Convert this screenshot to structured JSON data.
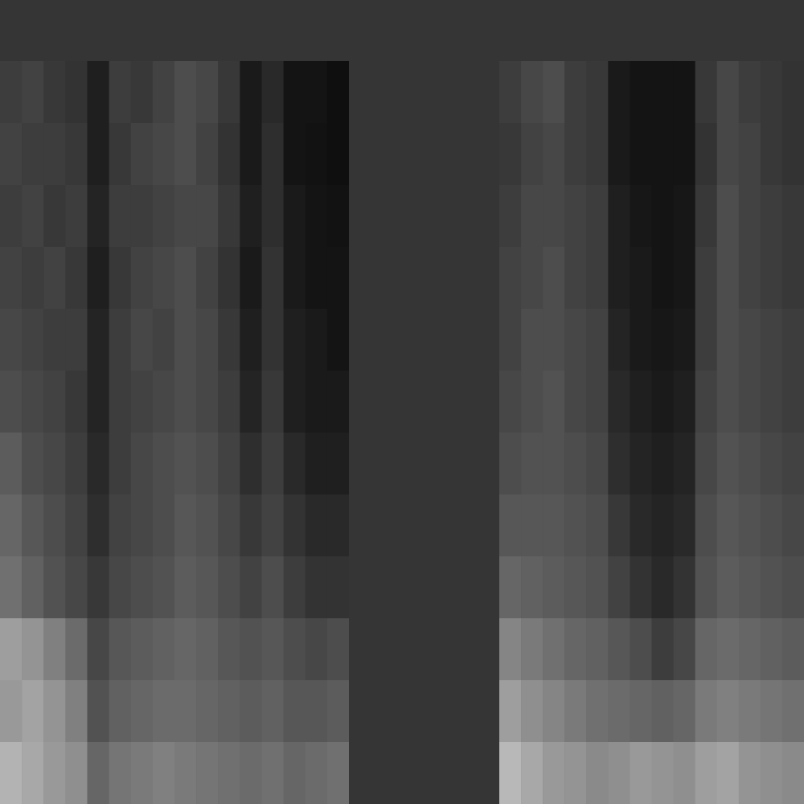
{
  "chart_data": [
    {
      "type": "heatmap",
      "color": "gray",
      "tick_labels": false,
      "zlim": [
        0,
        100
      ],
      "cells": [
        [
          24,
          26,
          22,
          20,
          12,
          24,
          22,
          26,
          30,
          28,
          22,
          10,
          16,
          8,
          8,
          6
        ],
        [
          26,
          24,
          24,
          22,
          12,
          22,
          26,
          28,
          30,
          26,
          20,
          10,
          18,
          8,
          7,
          6
        ],
        [
          24,
          26,
          22,
          24,
          14,
          24,
          24,
          26,
          28,
          28,
          22,
          12,
          18,
          10,
          8,
          7
        ],
        [
          26,
          24,
          26,
          22,
          12,
          22,
          26,
          28,
          30,
          26,
          20,
          10,
          20,
          10,
          8,
          8
        ],
        [
          28,
          26,
          24,
          24,
          14,
          24,
          28,
          26,
          30,
          28,
          22,
          12,
          20,
          12,
          10,
          8
        ],
        [
          30,
          28,
          26,
          22,
          14,
          24,
          26,
          28,
          30,
          28,
          24,
          14,
          22,
          12,
          10,
          10
        ],
        [
          36,
          30,
          28,
          24,
          16,
          24,
          28,
          30,
          32,
          30,
          26,
          18,
          24,
          16,
          12,
          12
        ],
        [
          40,
          34,
          30,
          26,
          18,
          26,
          28,
          30,
          34,
          32,
          28,
          22,
          26,
          20,
          16,
          16
        ],
        [
          44,
          38,
          32,
          28,
          22,
          28,
          30,
          32,
          36,
          34,
          30,
          26,
          30,
          24,
          20,
          20
        ],
        [
          62,
          58,
          50,
          42,
          28,
          34,
          36,
          38,
          40,
          38,
          34,
          32,
          34,
          30,
          28,
          30
        ],
        [
          60,
          64,
          58,
          50,
          32,
          38,
          40,
          42,
          42,
          40,
          38,
          36,
          38,
          34,
          34,
          36
        ],
        [
          70,
          66,
          60,
          56,
          40,
          46,
          48,
          50,
          48,
          46,
          44,
          42,
          44,
          40,
          42,
          44
        ]
      ]
    },
    {
      "type": "heatmap",
      "color": "gray",
      "tick_labels": false,
      "zlim": [
        0,
        100
      ],
      "cells": [
        [
          24,
          28,
          30,
          24,
          22,
          10,
          8,
          8,
          8,
          22,
          28,
          24,
          22,
          20
        ],
        [
          22,
          26,
          28,
          24,
          22,
          10,
          8,
          8,
          8,
          20,
          28,
          26,
          22,
          20
        ],
        [
          24,
          28,
          28,
          26,
          24,
          12,
          9,
          8,
          9,
          22,
          30,
          26,
          24,
          22
        ],
        [
          26,
          28,
          30,
          26,
          24,
          12,
          10,
          8,
          9,
          24,
          30,
          26,
          24,
          22
        ],
        [
          26,
          30,
          30,
          28,
          26,
          14,
          10,
          9,
          10,
          24,
          30,
          28,
          26,
          24
        ],
        [
          28,
          30,
          32,
          28,
          26,
          16,
          12,
          10,
          12,
          26,
          30,
          28,
          26,
          24
        ],
        [
          30,
          32,
          32,
          30,
          28,
          18,
          14,
          12,
          14,
          28,
          32,
          30,
          28,
          26
        ],
        [
          34,
          34,
          34,
          32,
          30,
          22,
          16,
          14,
          16,
          30,
          34,
          32,
          30,
          28
        ],
        [
          40,
          38,
          36,
          34,
          32,
          26,
          20,
          16,
          20,
          32,
          36,
          34,
          32,
          30
        ],
        [
          52,
          48,
          44,
          40,
          38,
          34,
          30,
          24,
          28,
          40,
          42,
          40,
          38,
          36
        ],
        [
          62,
          56,
          52,
          48,
          44,
          42,
          40,
          38,
          40,
          48,
          50,
          48,
          46,
          44
        ],
        [
          72,
          66,
          60,
          58,
          54,
          56,
          60,
          58,
          56,
          62,
          64,
          58,
          56,
          54
        ]
      ]
    }
  ]
}
